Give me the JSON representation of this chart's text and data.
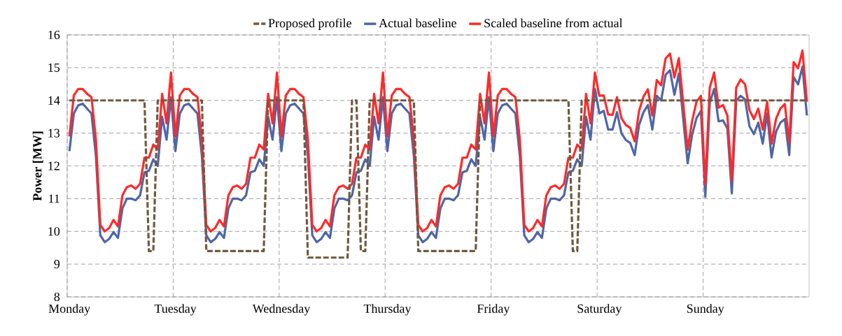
{
  "chart_data": {
    "type": "line",
    "ylabel": "Power [MW]",
    "categories": [
      "Monday",
      null,
      null,
      null,
      null,
      null,
      null,
      null,
      null,
      null,
      null,
      null,
      null,
      null,
      null,
      null,
      null,
      null,
      null,
      null,
      null,
      null,
      null,
      null,
      "Tuesday",
      null,
      null,
      null,
      null,
      null,
      null,
      null,
      null,
      null,
      null,
      null,
      null,
      null,
      null,
      null,
      null,
      null,
      null,
      null,
      null,
      null,
      null,
      null,
      "Wednesday",
      null,
      null,
      null,
      null,
      null,
      null,
      null,
      null,
      null,
      null,
      null,
      null,
      null,
      null,
      null,
      null,
      null,
      null,
      null,
      null,
      null,
      null,
      null,
      "Thursday",
      null,
      null,
      null,
      null,
      null,
      null,
      null,
      null,
      null,
      null,
      null,
      null,
      null,
      null,
      null,
      null,
      null,
      null,
      null,
      null,
      null,
      null,
      null,
      "Friday",
      null,
      null,
      null,
      null,
      null,
      null,
      null,
      null,
      null,
      null,
      null,
      null,
      null,
      null,
      null,
      null,
      null,
      null,
      null,
      null,
      null,
      null,
      null,
      "Saturday",
      null,
      null,
      null,
      null,
      null,
      null,
      null,
      null,
      null,
      null,
      null,
      null,
      null,
      null,
      null,
      null,
      null,
      null,
      null,
      null,
      null,
      null,
      null,
      "Sunday",
      null,
      null,
      null,
      null,
      null,
      null,
      null,
      null,
      null,
      null,
      null,
      null,
      null,
      null,
      null,
      null,
      null,
      null,
      null,
      null,
      null,
      null,
      null
    ],
    "ylim": [
      8,
      16
    ],
    "yticks": [
      8,
      9,
      10,
      11,
      12,
      13,
      14,
      15,
      16
    ],
    "grid": true,
    "legend": "top",
    "marker": "none",
    "series": [
      {
        "name": "Proposed profile",
        "color": "#6f5a3f",
        "line_style": "dashed",
        "values": [
          14,
          14,
          14,
          14,
          14,
          14,
          14,
          14,
          14,
          14,
          14,
          14,
          14,
          14,
          14,
          14,
          14,
          14,
          9.4,
          9.4,
          14,
          14,
          14,
          14,
          14,
          14,
          14,
          14,
          14,
          14,
          14,
          9.4,
          9.4,
          9.4,
          9.4,
          9.4,
          9.4,
          9.4,
          9.4,
          9.4,
          9.4,
          9.4,
          9.4,
          9.4,
          9.4,
          14,
          14,
          14,
          14,
          14,
          14,
          14,
          14,
          14,
          9.2,
          9.2,
          9.2,
          9.2,
          9.2,
          9.2,
          9.2,
          9.2,
          9.2,
          9.2,
          14,
          14,
          9.4,
          9.4,
          14,
          14,
          14,
          14,
          14,
          14,
          14,
          14,
          14,
          14,
          14,
          9.4,
          9.4,
          9.4,
          9.4,
          9.4,
          9.4,
          9.4,
          9.4,
          9.4,
          9.4,
          9.4,
          9.4,
          9.4,
          9.4,
          14,
          14,
          14,
          14,
          14,
          14,
          14,
          14,
          14,
          14,
          14,
          14,
          14,
          14,
          14,
          14,
          14,
          14,
          14,
          14,
          14,
          9.4,
          9.4,
          14,
          14,
          14,
          14,
          14,
          14,
          14,
          14,
          14,
          14,
          14,
          14,
          14,
          14,
          14,
          14,
          14,
          14,
          14,
          14,
          14,
          14,
          14,
          14,
          14,
          14,
          14,
          14,
          14,
          14,
          14,
          14,
          14,
          14,
          14,
          14,
          14,
          14,
          14,
          14,
          14,
          14,
          14,
          14,
          14,
          14,
          14,
          14,
          14,
          14,
          14,
          14
        ]
      },
      {
        "name": "Actual baseline",
        "color": "#4f66a6",
        "line_style": "solid",
        "values": [
          12.45,
          13.6,
          13.85,
          13.9,
          13.75,
          13.6,
          12.3,
          9.88,
          9.67,
          9.77,
          9.98,
          9.8,
          10.7,
          11.0,
          11.0,
          10.95,
          11.1,
          11.8,
          11.85,
          12.2,
          12.0,
          13.5,
          12.8,
          14.1,
          12.45,
          13.6,
          13.85,
          13.9,
          13.75,
          13.6,
          12.3,
          9.88,
          9.67,
          9.77,
          9.98,
          9.8,
          10.7,
          11.0,
          11.0,
          10.95,
          11.1,
          11.8,
          11.85,
          12.2,
          12.0,
          13.5,
          12.8,
          14.1,
          12.45,
          13.6,
          13.85,
          13.9,
          13.75,
          13.6,
          12.3,
          9.88,
          9.67,
          9.77,
          9.98,
          9.8,
          10.7,
          11.0,
          11.0,
          10.95,
          11.1,
          11.8,
          11.85,
          12.2,
          12.0,
          13.5,
          12.8,
          14.1,
          12.45,
          13.6,
          13.85,
          13.9,
          13.75,
          13.6,
          12.3,
          9.88,
          9.67,
          9.77,
          9.98,
          9.8,
          10.7,
          11.0,
          11.0,
          10.95,
          11.1,
          11.8,
          11.85,
          12.2,
          12.0,
          13.5,
          12.8,
          14.1,
          12.45,
          13.6,
          13.85,
          13.9,
          13.75,
          13.6,
          12.3,
          9.88,
          9.67,
          9.77,
          9.98,
          9.8,
          10.7,
          11.0,
          11.0,
          10.95,
          11.1,
          11.8,
          11.85,
          12.2,
          12.0,
          13.5,
          12.8,
          14.35,
          13.6,
          13.68,
          13.11,
          13.11,
          13.64,
          13.0,
          12.79,
          12.7,
          12.33,
          13.25,
          13.64,
          13.86,
          13.11,
          14.14,
          14.0,
          14.78,
          14.92,
          14.17,
          14.82,
          13.43,
          12.08,
          12.94,
          13.46,
          13.68,
          11.05,
          13.93,
          14.35,
          13.36,
          13.39,
          13.14,
          11.16,
          14.0,
          14.14,
          14.03,
          13.21,
          12.97,
          13.32,
          12.68,
          13.6,
          12.26,
          13.04,
          13.32,
          13.43,
          12.33,
          14.71,
          14.49,
          15.03,
          13.54
        ]
      },
      {
        "name": "Scaled baseline from actual",
        "color": "#ff2a2a",
        "line_style": "solid",
        "values": [
          12.9,
          14.15,
          14.35,
          14.35,
          14.2,
          14.1,
          12.8,
          10.2,
          10.0,
          10.1,
          10.35,
          10.15,
          11.1,
          11.35,
          11.4,
          11.3,
          11.45,
          12.25,
          12.25,
          12.65,
          12.5,
          14.2,
          13.3,
          14.85,
          12.9,
          14.15,
          14.35,
          14.35,
          14.2,
          14.1,
          12.8,
          10.2,
          10.0,
          10.1,
          10.35,
          10.15,
          11.1,
          11.35,
          11.4,
          11.3,
          11.45,
          12.25,
          12.25,
          12.65,
          12.5,
          14.2,
          13.3,
          14.85,
          12.9,
          14.15,
          14.35,
          14.35,
          14.2,
          14.1,
          12.8,
          10.2,
          10.0,
          10.1,
          10.35,
          10.15,
          11.1,
          11.35,
          11.4,
          11.3,
          11.45,
          12.25,
          12.25,
          12.65,
          12.5,
          14.2,
          13.3,
          14.85,
          12.9,
          14.15,
          14.35,
          14.35,
          14.2,
          14.1,
          12.8,
          10.2,
          10.0,
          10.1,
          10.35,
          10.15,
          11.1,
          11.35,
          11.4,
          11.3,
          11.45,
          12.25,
          12.25,
          12.65,
          12.5,
          14.2,
          13.3,
          14.85,
          12.9,
          14.15,
          14.35,
          14.35,
          14.2,
          14.1,
          12.8,
          10.2,
          10.0,
          10.1,
          10.35,
          10.15,
          11.1,
          11.35,
          11.4,
          11.3,
          11.45,
          12.25,
          12.25,
          12.65,
          12.5,
          14.2,
          13.3,
          14.85,
          14.14,
          14.15,
          13.57,
          13.56,
          14.1,
          13.46,
          13.25,
          13.16,
          12.75,
          13.68,
          14.12,
          14.34,
          13.54,
          14.62,
          14.46,
          15.28,
          15.43,
          14.7,
          15.29,
          13.9,
          12.5,
          13.36,
          13.96,
          14.14,
          11.44,
          14.39,
          14.85,
          13.78,
          13.86,
          13.54,
          11.55,
          14.39,
          14.64,
          14.49,
          13.71,
          13.43,
          13.75,
          13.11,
          13.96,
          12.68,
          13.43,
          13.75,
          13.89,
          12.72,
          15.17,
          14.98,
          15.52,
          13.96
        ]
      }
    ]
  }
}
